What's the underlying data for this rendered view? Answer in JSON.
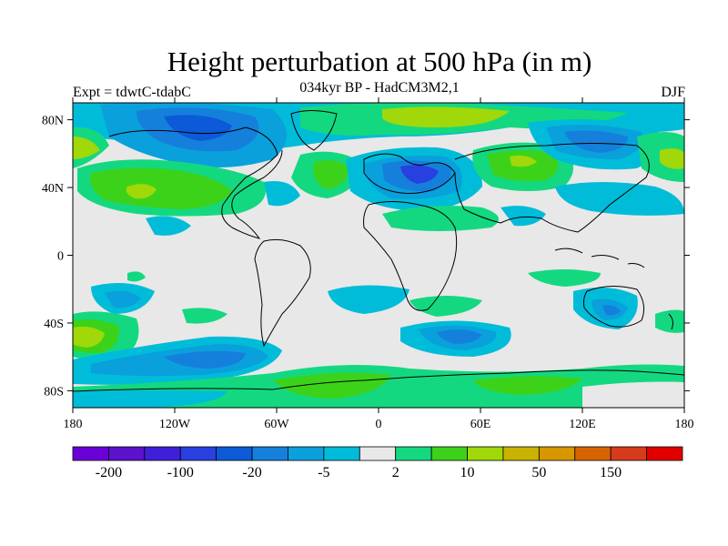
{
  "title": "Height perturbation at 500 hPa (in m)",
  "subtitle": "034kyr BP - HadCM3M2,1",
  "left_label": "Expt = tdwtC-tdabC",
  "right_label": "DJF",
  "colors": {
    "background": "#e8e8e8",
    "palette": [
      "#6a00d8",
      "#5a12cc",
      "#3f1fd8",
      "#2840e0",
      "#0c5ad8",
      "#1480dc",
      "#0aa0dc",
      "#00bcd8",
      "#e8e8e8",
      "#14d880",
      "#3cd21a",
      "#a0d80a",
      "#c8b400",
      "#d89600",
      "#d86400",
      "#d83a1c",
      "#e00000"
    ]
  },
  "chart_data": {
    "type": "heatmap",
    "x_ticks": [
      "180",
      "120W",
      "60W",
      "0",
      "60E",
      "120E",
      "180"
    ],
    "y_ticks": [
      "80N",
      "40N",
      "0",
      "40S",
      "80S"
    ],
    "x_range": [
      -180,
      180
    ],
    "y_range": [
      -90,
      90
    ],
    "colorbar_labels": [
      "-200",
      "-100",
      "-20",
      "-5",
      "2",
      "10",
      "50",
      "150"
    ]
  }
}
